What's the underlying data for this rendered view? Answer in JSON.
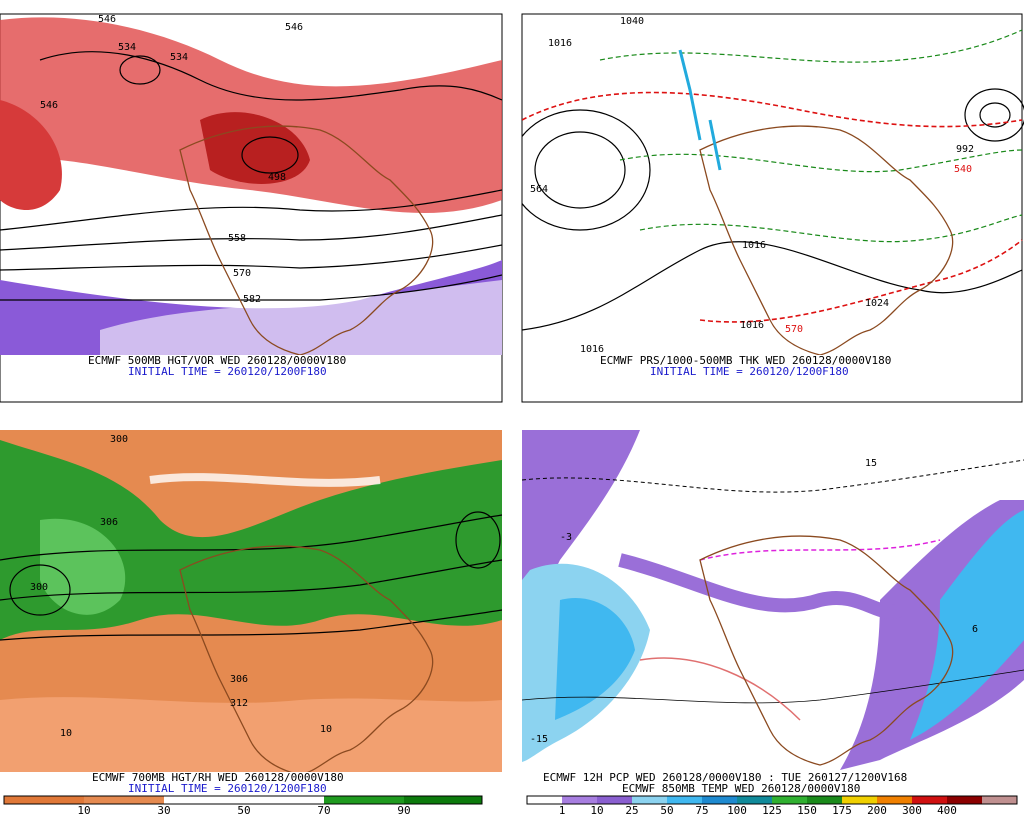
{
  "panels": [
    {
      "caption": "ECMWF 500MB HGT/VOR WED 260128/0000V180",
      "initial_time": "INITIAL TIME = 260120/1200F180",
      "contour_labels": [
        "546",
        "534",
        "534",
        "546",
        "546",
        "498",
        "558",
        "570",
        "582"
      ]
    },
    {
      "caption": "ECMWF PRS/1000-500MB THK WED 260128/0000V180",
      "initial_time": "INITIAL TIME = 260120/1200F180",
      "contour_labels": [
        "1040",
        "1016",
        "1024",
        "1016",
        "1016",
        "1016",
        "570",
        "540",
        "992",
        "564"
      ]
    },
    {
      "caption": "ECMWF 700MB HGT/RH WED 260128/0000V180",
      "initial_time": "INITIAL TIME = 260120/1200F180",
      "contour_labels": [
        "300",
        "306",
        "300",
        "10",
        "10",
        "306",
        "312"
      ],
      "colorbar_labels": [
        10,
        30,
        50,
        70,
        90
      ]
    },
    {
      "caption": "ECMWF 12H PCP WED 260128/0000V180 : TUE 260127/1200V168",
      "subcaption": "ECMWF 850MB TEMP WED 260128/0000V180",
      "contour_labels": [
        "-15",
        "15",
        "6",
        "-3"
      ],
      "colorbar_labels": [
        1,
        10,
        25,
        50,
        75,
        100,
        125,
        150,
        175,
        200,
        300,
        400
      ]
    }
  ]
}
